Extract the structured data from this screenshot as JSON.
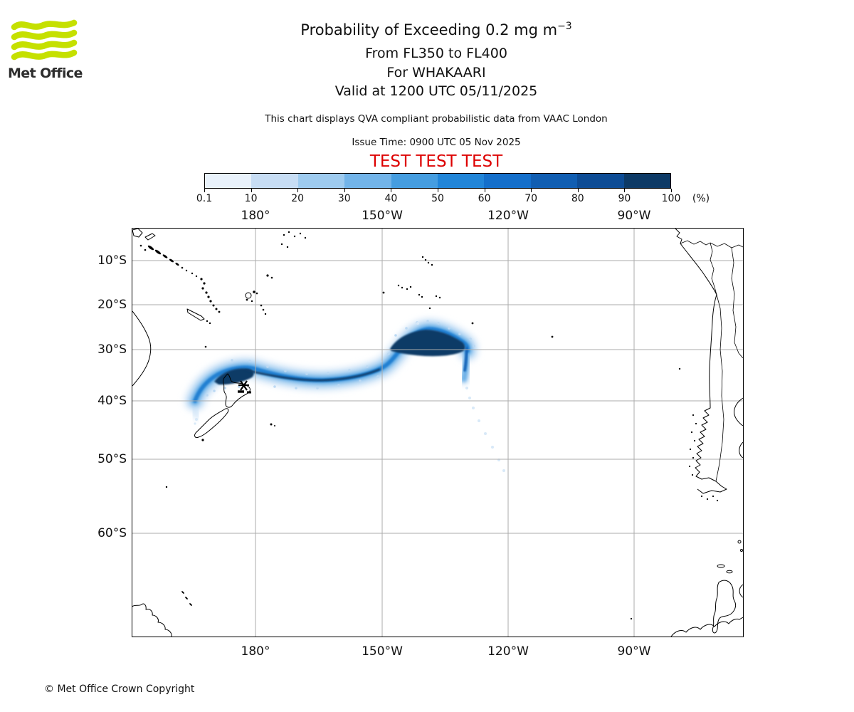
{
  "header": {
    "logo_text": "Met Office",
    "title_main": "Probability of Exceeding 0.2 mg m",
    "title_sup": "−3",
    "subtitle_levels": "From FL350 to FL400",
    "subtitle_volcano": "For WHAKAARI",
    "subtitle_valid": "Valid at 1200 UTC 05/11/2025",
    "description": "This chart displays QVA compliant probabilistic data from VAAC London",
    "issue_time": "Issue Time: 0900 UTC 05 Nov 2025",
    "test_banner": "TEST TEST TEST"
  },
  "colorbar": {
    "labels": [
      "0.1",
      "10",
      "20",
      "30",
      "40",
      "50",
      "60",
      "70",
      "80",
      "90",
      "100"
    ],
    "unit": "(%)",
    "colors": [
      "#e9f2fb",
      "#c7ddf4",
      "#9ecbef",
      "#72b4e9",
      "#459de0",
      "#2185d8",
      "#146fcb",
      "#115eb2",
      "#0d4c95",
      "#0d3a66"
    ]
  },
  "map": {
    "top_axis": [
      "180°",
      "150°W",
      "120°W",
      "90°W"
    ],
    "bottom_axis": [
      "180°",
      "150°W",
      "120°W",
      "90°W"
    ],
    "left_axis": [
      "10°S",
      "20°S",
      "30°S",
      "40°S",
      "50°S",
      "60°S"
    ]
  },
  "footer": {
    "copyright": "© Met Office Crown Copyright"
  },
  "chart_data": {
    "type": "heatmap",
    "title": "Probability of Exceeding 0.2 mg m−3",
    "flight_levels": "FL350 to FL400",
    "volcano": "WHAKAARI",
    "valid_time": "1200 UTC 05/11/2025",
    "issue_time": "0900 UTC 05 Nov 2025",
    "provider": "VAAC London",
    "quantity": "Probability of ash concentration exceeding 0.2 mg m-3 (%)",
    "colorbar_levels_percent": [
      0.1,
      10,
      20,
      30,
      40,
      50,
      60,
      70,
      80,
      90,
      100
    ],
    "colorbar_colors": [
      "#e9f2fb",
      "#c7ddf4",
      "#9ecbef",
      "#72b4e9",
      "#459de0",
      "#2185d8",
      "#146fcb",
      "#115eb2",
      "#0d4c95",
      "#0d3a66"
    ],
    "x_axis": {
      "ticks": [
        "180°",
        "150°W",
        "120°W",
        "90°W"
      ],
      "range": [
        "~150°E",
        "~64°W"
      ]
    },
    "y_axis": {
      "ticks": [
        "10°S",
        "20°S",
        "30°S",
        "40°S",
        "50°S",
        "60°S"
      ],
      "range": [
        "~3°S",
        "~70°S"
      ],
      "projection": "mercator-like spacing"
    },
    "grid": true,
    "plume": {
      "source": "Whakaari (Bay of Plenty, New Zealand)",
      "shape": "Ribbon of probability extending from ~38°S near New Zealand eastward along ~35°S, rising northeast to a dense maximum lobe near 27–30°S around 145–128°W, with a southward hook at ~128°W descending to ~37°S and faint scattered specks trailing southeast to ~50°S",
      "max_probability_percent": "90–100 in dark core over the Bay of Plenty and in the eastern lobe near 140–130°W",
      "approx_centerline_lon_lat": [
        [
          176,
          -37.5
        ],
        [
          180,
          -35
        ],
        [
          190,
          -35
        ],
        [
          200,
          -35
        ],
        [
          210,
          -33
        ],
        [
          215,
          -30
        ],
        [
          220,
          -28
        ],
        [
          228,
          -29
        ],
        [
          232,
          -29.5
        ],
        [
          232,
          -33
        ]
      ]
    }
  }
}
